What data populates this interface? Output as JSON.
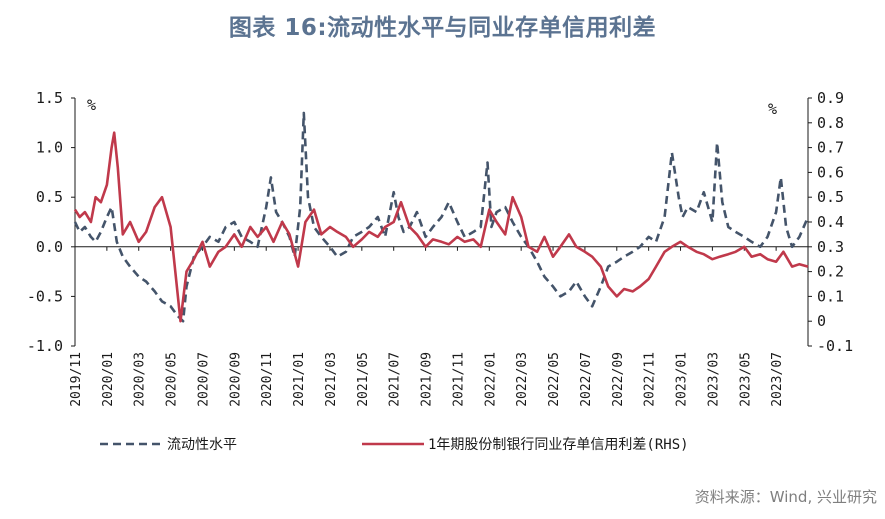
{
  "title": "图表 16:流动性水平与同业存单信用利差",
  "source": "资料来源：Wind, 兴业研究",
  "colors": {
    "series1": "#44546a",
    "series2": "#c0394b",
    "axis": "#1a1a1a"
  },
  "chart_data": {
    "type": "line",
    "left_axis": {
      "unit": "%",
      "ylim": [
        -1.0,
        1.5
      ],
      "ticks": [
        "1.5",
        "1.0",
        "0.5",
        "0.0",
        "-0.5",
        "-1.0"
      ],
      "tick_values": [
        1.5,
        1.0,
        0.5,
        0.0,
        -0.5,
        -1.0
      ]
    },
    "right_axis": {
      "unit": "%",
      "ylim": [
        -0.1,
        0.9
      ],
      "ticks": [
        "0.9",
        "0.8",
        "0.7",
        "0.6",
        "0.5",
        "0.4",
        "0.3",
        "0.2",
        "0.1",
        "0",
        "-0.1"
      ],
      "tick_values": [
        0.9,
        0.8,
        0.7,
        0.6,
        0.5,
        0.4,
        0.3,
        0.2,
        0.1,
        0,
        -0.1
      ]
    },
    "x_range": [
      "2019-11",
      "2023-09"
    ],
    "x_ticks": [
      "2019/11",
      "2020/01",
      "2020/03",
      "2020/05",
      "2020/07",
      "2020/09",
      "2020/11",
      "2021/01",
      "2021/03",
      "2021/05",
      "2021/07",
      "2021/09",
      "2021/11",
      "2022/01",
      "2022/03",
      "2022/05",
      "2022/07",
      "2022/09",
      "2022/11",
      "2023/01",
      "2023/03",
      "2023/05",
      "2023/07"
    ],
    "legend_position": "bottom",
    "series": [
      {
        "name": "流动性水平",
        "axis": "left",
        "style": "dashed",
        "x": [
          "2019-11-01",
          "2019-11-10",
          "2019-11-20",
          "2019-12-01",
          "2019-12-10",
          "2019-12-20",
          "2020-01-01",
          "2020-01-10",
          "2020-01-20",
          "2020-02-01",
          "2020-02-15",
          "2020-03-01",
          "2020-03-15",
          "2020-04-01",
          "2020-04-15",
          "2020-05-01",
          "2020-05-15",
          "2020-05-25",
          "2020-06-01",
          "2020-06-15",
          "2020-07-01",
          "2020-07-15",
          "2020-08-01",
          "2020-08-15",
          "2020-09-01",
          "2020-09-15",
          "2020-10-01",
          "2020-10-15",
          "2020-11-01",
          "2020-11-10",
          "2020-11-20",
          "2020-12-01",
          "2020-12-15",
          "2020-12-25",
          "2021-01-05",
          "2021-01-12",
          "2021-01-20",
          "2021-02-01",
          "2021-02-15",
          "2021-03-01",
          "2021-03-15",
          "2021-04-01",
          "2021-04-15",
          "2021-05-01",
          "2021-05-15",
          "2021-06-01",
          "2021-06-15",
          "2021-07-01",
          "2021-07-10",
          "2021-07-20",
          "2021-08-01",
          "2021-08-15",
          "2021-09-01",
          "2021-09-15",
          "2021-10-01",
          "2021-10-15",
          "2021-11-01",
          "2021-11-15",
          "2021-12-01",
          "2021-12-15",
          "2021-12-28",
          "2022-01-05",
          "2022-01-15",
          "2022-02-01",
          "2022-02-15",
          "2022-03-01",
          "2022-03-15",
          "2022-04-01",
          "2022-04-15",
          "2022-05-01",
          "2022-05-15",
          "2022-06-01",
          "2022-06-15",
          "2022-07-01",
          "2022-07-15",
          "2022-08-01",
          "2022-08-15",
          "2022-09-01",
          "2022-09-15",
          "2022-10-01",
          "2022-10-15",
          "2022-11-01",
          "2022-11-15",
          "2022-12-01",
          "2022-12-15",
          "2022-12-28",
          "2023-01-05",
          "2023-01-15",
          "2023-02-01",
          "2023-02-15",
          "2023-03-01",
          "2023-03-10",
          "2023-03-20",
          "2023-04-01",
          "2023-04-15",
          "2023-05-01",
          "2023-05-15",
          "2023-06-01",
          "2023-06-15",
          "2023-07-01",
          "2023-07-10",
          "2023-07-20",
          "2023-08-01",
          "2023-08-15",
          "2023-09-01"
        ],
        "values": [
          0.25,
          0.15,
          0.2,
          0.1,
          0.05,
          0.15,
          0.3,
          0.4,
          0.05,
          -0.1,
          -0.2,
          -0.3,
          -0.35,
          -0.45,
          -0.55,
          -0.6,
          -0.7,
          -0.75,
          -0.4,
          -0.1,
          0.0,
          0.1,
          0.05,
          0.2,
          0.25,
          0.1,
          0.05,
          0.0,
          0.4,
          0.7,
          0.35,
          0.25,
          0.1,
          -0.1,
          0.4,
          1.35,
          0.5,
          0.2,
          0.1,
          0.0,
          -0.1,
          -0.05,
          0.1,
          0.15,
          0.2,
          0.3,
          0.1,
          0.55,
          0.3,
          0.15,
          0.2,
          0.35,
          0.1,
          0.2,
          0.3,
          0.45,
          0.25,
          0.1,
          0.15,
          0.2,
          0.85,
          0.2,
          0.35,
          0.4,
          0.25,
          0.1,
          0.0,
          -0.15,
          -0.3,
          -0.4,
          -0.5,
          -0.45,
          -0.35,
          -0.5,
          -0.6,
          -0.4,
          -0.2,
          -0.15,
          -0.1,
          -0.05,
          0.0,
          0.1,
          0.05,
          0.3,
          0.95,
          0.5,
          0.3,
          0.4,
          0.35,
          0.55,
          0.25,
          1.05,
          0.45,
          0.2,
          0.15,
          0.1,
          0.05,
          0.0,
          0.1,
          0.35,
          0.7,
          0.2,
          0.0,
          0.1,
          0.3
        ]
      },
      {
        "name": "1年期股份制银行同业存单信用利差(RHS)",
        "axis": "right",
        "style": "solid",
        "x": [
          "2019-11-01",
          "2019-11-10",
          "2019-11-20",
          "2019-12-01",
          "2019-12-10",
          "2019-12-20",
          "2020-01-01",
          "2020-01-10",
          "2020-01-15",
          "2020-01-22",
          "2020-02-01",
          "2020-02-15",
          "2020-03-01",
          "2020-03-15",
          "2020-04-01",
          "2020-04-15",
          "2020-05-01",
          "2020-05-10",
          "2020-05-20",
          "2020-06-01",
          "2020-06-15",
          "2020-07-01",
          "2020-07-15",
          "2020-08-01",
          "2020-08-15",
          "2020-09-01",
          "2020-09-15",
          "2020-10-01",
          "2020-10-15",
          "2020-11-01",
          "2020-11-15",
          "2020-12-01",
          "2020-12-15",
          "2021-01-01",
          "2021-01-15",
          "2021-02-01",
          "2021-02-15",
          "2021-03-01",
          "2021-03-15",
          "2021-04-01",
          "2021-04-15",
          "2021-05-01",
          "2021-05-15",
          "2021-06-01",
          "2021-06-15",
          "2021-07-01",
          "2021-07-15",
          "2021-08-01",
          "2021-08-15",
          "2021-09-01",
          "2021-09-15",
          "2021-10-01",
          "2021-10-15",
          "2021-11-01",
          "2021-11-15",
          "2021-12-01",
          "2021-12-15",
          "2022-01-01",
          "2022-01-15",
          "2022-02-01",
          "2022-02-15",
          "2022-03-01",
          "2022-03-15",
          "2022-04-01",
          "2022-04-15",
          "2022-05-01",
          "2022-05-15",
          "2022-06-01",
          "2022-06-15",
          "2022-07-01",
          "2022-07-15",
          "2022-08-01",
          "2022-08-15",
          "2022-09-01",
          "2022-09-15",
          "2022-10-01",
          "2022-10-15",
          "2022-11-01",
          "2022-11-15",
          "2022-12-01",
          "2022-12-15",
          "2023-01-01",
          "2023-01-15",
          "2023-02-01",
          "2023-02-15",
          "2023-03-01",
          "2023-03-15",
          "2023-04-01",
          "2023-04-15",
          "2023-05-01",
          "2023-05-15",
          "2023-06-01",
          "2023-06-15",
          "2023-07-01",
          "2023-07-15",
          "2023-08-01",
          "2023-08-15",
          "2023-09-01"
        ],
        "values": [
          0.45,
          0.42,
          0.44,
          0.4,
          0.5,
          0.48,
          0.55,
          0.7,
          0.76,
          0.62,
          0.35,
          0.4,
          0.32,
          0.36,
          0.46,
          0.5,
          0.38,
          0.2,
          0.0,
          0.2,
          0.25,
          0.32,
          0.22,
          0.28,
          0.3,
          0.35,
          0.3,
          0.38,
          0.34,
          0.38,
          0.32,
          0.4,
          0.35,
          0.22,
          0.4,
          0.45,
          0.35,
          0.38,
          0.36,
          0.34,
          0.3,
          0.33,
          0.36,
          0.34,
          0.38,
          0.4,
          0.48,
          0.38,
          0.35,
          0.3,
          0.33,
          0.32,
          0.31,
          0.34,
          0.32,
          0.33,
          0.3,
          0.45,
          0.4,
          0.35,
          0.5,
          0.42,
          0.3,
          0.28,
          0.34,
          0.26,
          0.3,
          0.35,
          0.3,
          0.28,
          0.26,
          0.22,
          0.14,
          0.1,
          0.13,
          0.12,
          0.14,
          0.17,
          0.22,
          0.28,
          0.3,
          0.32,
          0.3,
          0.28,
          0.27,
          0.25,
          0.26,
          0.27,
          0.28,
          0.3,
          0.26,
          0.27,
          0.25,
          0.24,
          0.28,
          0.22,
          0.23,
          0.22
        ]
      }
    ]
  }
}
